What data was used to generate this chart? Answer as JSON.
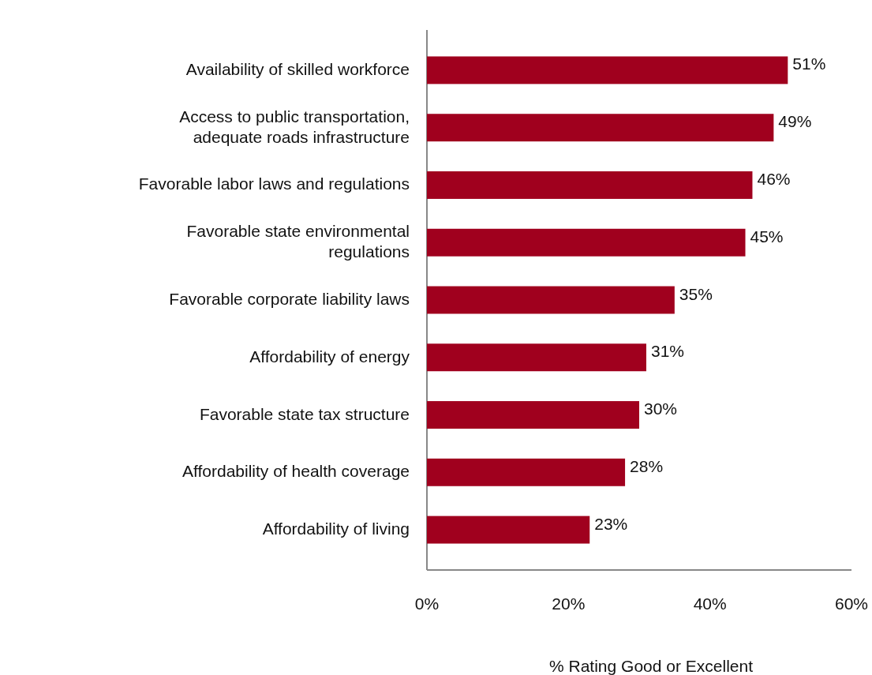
{
  "chart_data": {
    "type": "bar",
    "orientation": "horizontal",
    "xlabel": "% Rating Good or Excellent",
    "categories": [
      "Availability of skilled workforce",
      "Access to public transportation, adequate roads infrastructure",
      "Favorable labor laws and regulations",
      "Favorable state environmental regulations",
      "Favorable corporate liability laws",
      "Affordability of energy",
      "Favorable state tax structure",
      "Affordability of health coverage",
      "Affordability of living"
    ],
    "values": [
      51,
      49,
      46,
      45,
      35,
      31,
      30,
      28,
      23
    ],
    "value_labels": [
      "51%",
      "49%",
      "46%",
      "45%",
      "35%",
      "31%",
      "30%",
      "28%",
      "23%"
    ],
    "color": "#a0001e",
    "xlim": [
      0,
      60
    ],
    "xticks": [
      {
        "value": 0,
        "label": "0%"
      },
      {
        "value": 20,
        "label": "20%"
      },
      {
        "value": 40,
        "label": "40%"
      },
      {
        "value": 60,
        "label": "60%"
      }
    ],
    "grid": false
  }
}
